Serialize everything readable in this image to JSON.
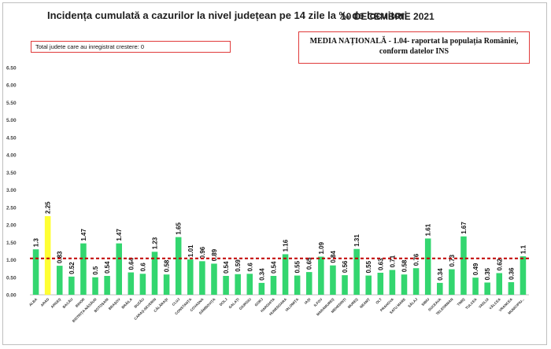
{
  "header": {
    "title": "Incidența cumulată a cazurilor la nivel județean pe 14 zile la ‰ de locuitori",
    "date": "10 DECEMBRIE 2021"
  },
  "info_left": "Total judete care au inregistrat crestere: 0",
  "info_right": {
    "line1": "MEDIA NAȚIONALĂ - 1.04-  raportat la populația României,",
    "line2": "conform datelor INS"
  },
  "colors": {
    "bar": "#33d66f",
    "highlight_bar": "#ffff33",
    "reference_line": "#c00000",
    "box_border": "#e03a3a"
  },
  "chart_data": {
    "type": "bar",
    "categories": [
      "ALBA",
      "ARAD",
      "ARGEȘ",
      "BACĂU",
      "BIHOR",
      "BISTRIȚA-NĂSĂUD",
      "BOTOȘANI",
      "BRAȘOV",
      "BRĂILA",
      "BUZĂU",
      "CARAȘ-SEVERIN",
      "CĂLĂRAȘI",
      "CLUJ",
      "CONSTANȚA",
      "COVASNA",
      "DÂMBOVIȚA",
      "DOLJ",
      "GALAȚI",
      "GIURGIU",
      "GORJ",
      "HARGHITA",
      "HUNEDOARA",
      "IALOMIȚA",
      "IAȘI",
      "ILFOV",
      "MARAMUREȘ",
      "MEHEDINȚI",
      "MUREȘ",
      "NEAMȚ",
      "OLT",
      "PRAHOVA",
      "SATU MARE",
      "SĂLAJ",
      "SIBIU",
      "SUCEAVA",
      "TELEORMAN",
      "TIMIȘ",
      "TULCEA",
      "VASLUI",
      "VÂLCEA",
      "VRANCEA",
      "MUNICIPIU..."
    ],
    "values": [
      1.3,
      2.25,
      0.83,
      0.52,
      1.47,
      0.5,
      0.54,
      1.47,
      0.64,
      0.6,
      1.23,
      0.58,
      1.65,
      1.01,
      0.96,
      0.89,
      0.54,
      0.59,
      0.6,
      0.34,
      0.54,
      1.16,
      0.55,
      0.65,
      1.09,
      0.84,
      0.56,
      1.31,
      0.55,
      0.63,
      0.71,
      0.58,
      0.76,
      1.61,
      0.34,
      0.73,
      1.67,
      0.49,
      0.35,
      0.62,
      0.36,
      1.1
    ],
    "value_labels": [
      "1.3",
      "2.25",
      "0.83",
      "0.52",
      "1.47",
      "0.5",
      "0.54",
      "1.47",
      "0.64",
      "0.6",
      "1.23",
      "0.58",
      "1.65",
      "1.01",
      "0.96",
      "0.89",
      "0.54",
      "0.59",
      "0.6",
      "0.34",
      "0.54",
      "1.16",
      "0.55",
      "0.65",
      "1.09",
      "0.84",
      "0.56",
      "1.31",
      "0.55",
      "0.63",
      "0.71",
      "0.58",
      "0.76",
      "1.61",
      "0.34",
      "0.73",
      "1.67",
      "0.49",
      "0.35",
      "0.62",
      "0.36",
      "1.1"
    ],
    "highlight_index": 1,
    "reference_line": 1.04,
    "yticks": [
      "0.00",
      "0.50",
      "1.00",
      "1.50",
      "2.00",
      "2.50",
      "3.00",
      "3.50",
      "4.00",
      "4.50",
      "5.00",
      "5.50",
      "6.00",
      "6.50"
    ],
    "ylim": [
      0,
      6.5
    ],
    "grid": false,
    "title": "Incidența cumulată a cazurilor la nivel județean pe 14 zile la ‰ de locuitori",
    "xlabel": "",
    "ylabel": ""
  }
}
